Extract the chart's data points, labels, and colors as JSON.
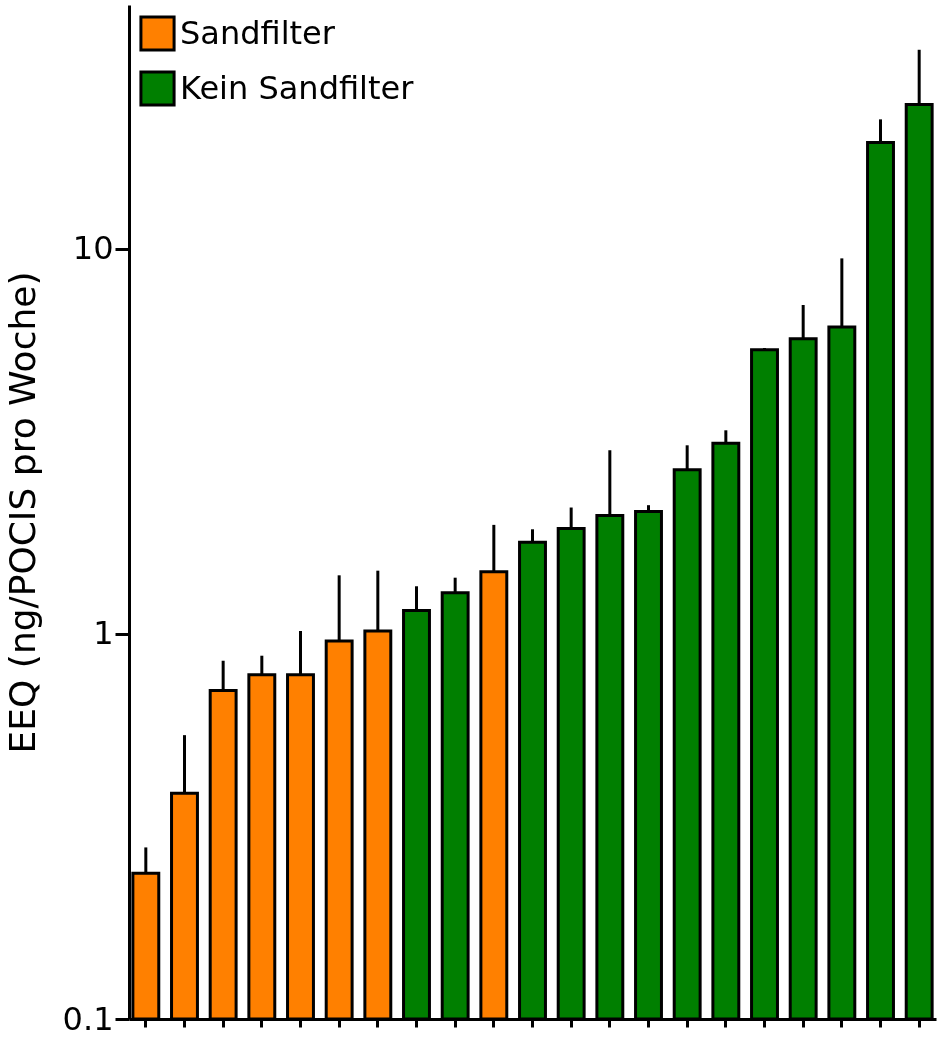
{
  "chart_data": {
    "type": "bar",
    "ylabel": "EEQ (ng/POCIS pro Woche)",
    "categories": [
      null,
      null,
      null,
      null,
      null,
      null,
      null,
      null,
      null,
      null,
      null,
      null,
      null,
      null,
      null,
      null,
      null,
      null,
      null,
      null,
      null
    ],
    "series": [
      {
        "name": "Sandfilter",
        "color": "#ff8000",
        "values": [
          0.239,
          0.386,
          0.713,
          0.784,
          0.784,
          0.959,
          1.018,
          null,
          null,
          1.45,
          null,
          null,
          null,
          null,
          null,
          null,
          null,
          null,
          null,
          null,
          null
        ],
        "errors": [
          [
            0.239,
            0.279
          ],
          [
            0.386,
            0.546
          ],
          [
            0.713,
            0.852
          ],
          [
            0.784,
            0.878
          ],
          [
            0.784,
            1.018
          ],
          [
            0.959,
            1.42
          ],
          [
            1.018,
            1.46
          ],
          null,
          null,
          [
            1.45,
            1.92
          ],
          null,
          null,
          null,
          null,
          null,
          null,
          null,
          null,
          null,
          null,
          null
        ]
      },
      {
        "name": "Kein Sandfilter",
        "color": "#007f00",
        "values": [
          null,
          null,
          null,
          null,
          null,
          null,
          null,
          1.15,
          1.28,
          null,
          1.73,
          1.88,
          2.03,
          2.08,
          2.67,
          3.13,
          5.47,
          5.84,
          6.27,
          18.9,
          23.7
        ],
        "errors": [
          null,
          null,
          null,
          null,
          null,
          null,
          null,
          [
            1.15,
            1.33
          ],
          [
            1.28,
            1.4
          ],
          null,
          [
            1.73,
            1.87
          ],
          [
            1.88,
            2.13
          ],
          [
            2.03,
            3.0
          ],
          [
            2.08,
            2.16
          ],
          [
            2.67,
            3.09
          ],
          [
            3.13,
            3.38
          ],
          [
            5.47,
            5.53
          ],
          [
            5.84,
            7.15
          ],
          [
            6.27,
            9.45
          ],
          [
            18.9,
            21.7
          ],
          [
            23.7,
            32.9
          ]
        ]
      }
    ],
    "log": "y",
    "ylim": [
      0.1,
      43
    ],
    "yticks": [
      {
        "value": 0.1,
        "label": "0.1"
      },
      1,
      10
    ],
    "legend": "top left",
    "grid": false,
    "tick_labels": "y"
  }
}
